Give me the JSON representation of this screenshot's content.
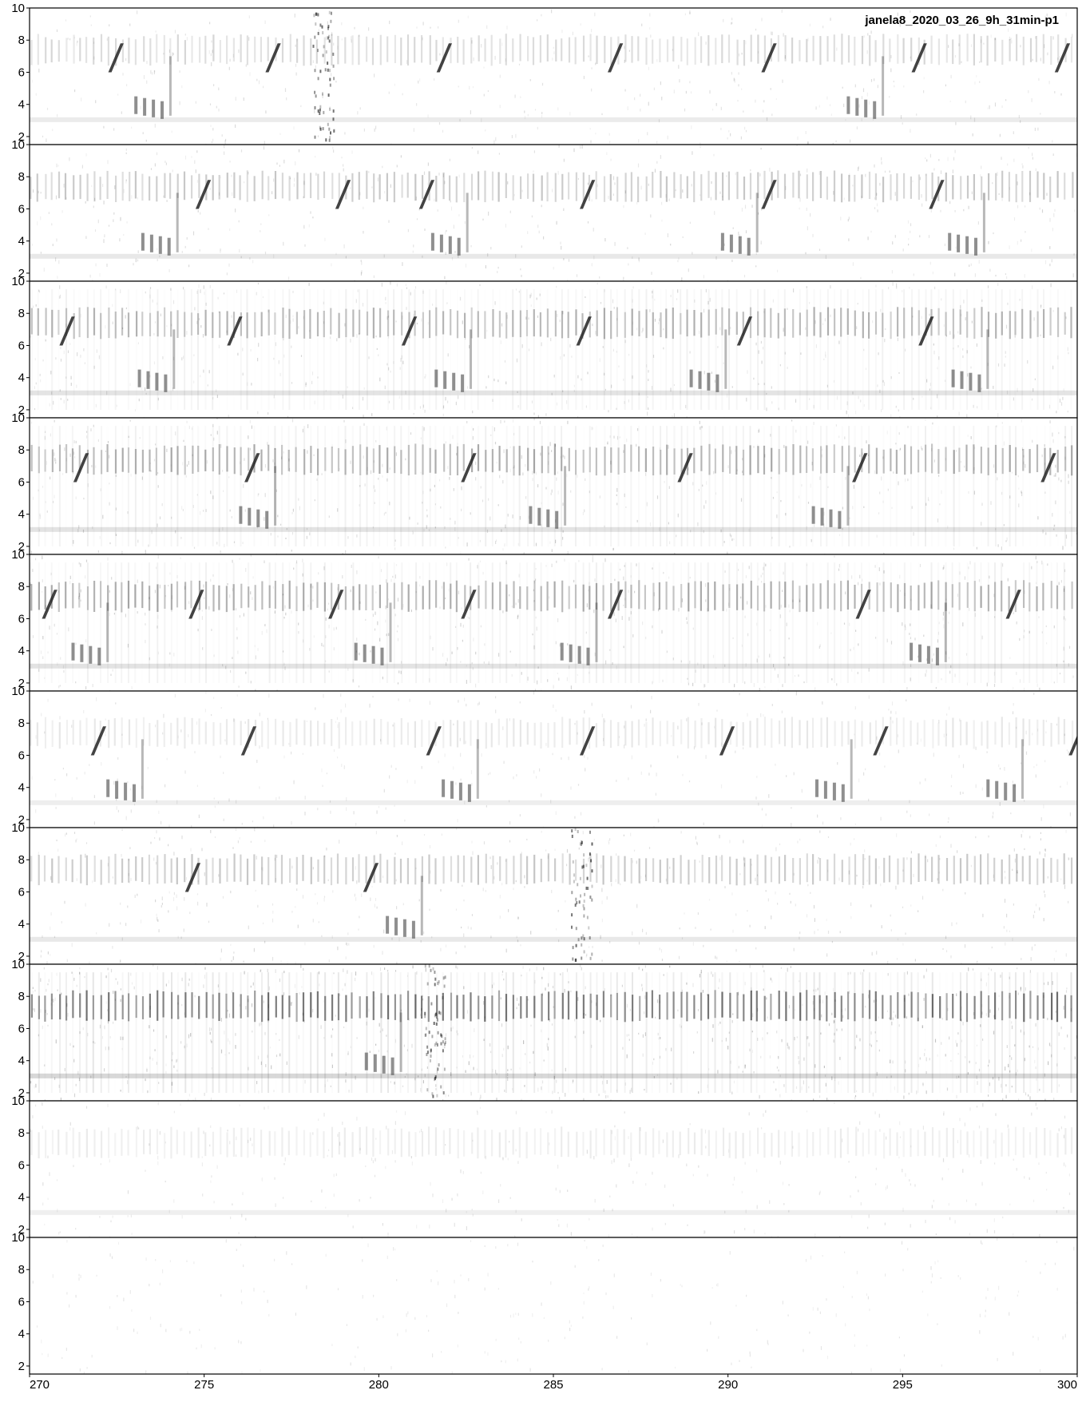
{
  "chart_data": {
    "type": "heatmap",
    "title": "janela8_2020_03_26_9h_31min-p1",
    "xlabel": "",
    "ylabel": "",
    "colormap": {
      "low": "#ffffff",
      "high": "#000000"
    },
    "panels": [
      {
        "x_range": [
          0,
          30
        ],
        "x_ticks": [
          0,
          5,
          10,
          15,
          20,
          25,
          30
        ],
        "y_range": [
          1.5,
          10
        ],
        "y_ticks": [
          2,
          4,
          6,
          8,
          10
        ],
        "tone_band_kHz": 7.3,
        "tone_intensity": 0.25,
        "calls_s": [
          2.3,
          6.8,
          11.7,
          16.6,
          21.0,
          25.3,
          29.4
        ],
        "choruses_s": [
          3.0,
          23.4
        ],
        "broadband_s": [
          8.4
        ]
      },
      {
        "x_range": [
          30,
          60
        ],
        "x_ticks": [
          30,
          35,
          40,
          45,
          50,
          55,
          60
        ],
        "y_range": [
          1.5,
          10
        ],
        "y_ticks": [
          2,
          4,
          6,
          8,
          10
        ],
        "tone_band_kHz": 7.3,
        "tone_intensity": 0.35,
        "calls_s": [
          34.8,
          38.8,
          41.2,
          45.8,
          51.0,
          55.8
        ],
        "choruses_s": [
          33.2,
          41.5,
          49.8,
          56.3
        ],
        "broadband_s": []
      },
      {
        "x_range": [
          60,
          90
        ],
        "x_ticks": [
          60,
          65,
          70,
          75,
          80,
          85,
          90
        ],
        "y_range": [
          1.5,
          10
        ],
        "y_ticks": [
          2,
          4,
          6,
          8,
          10
        ],
        "tone_band_kHz": 7.3,
        "tone_intensity": 0.45,
        "calls_s": [
          60.9,
          65.7,
          70.7,
          75.7,
          80.3,
          85.5
        ],
        "choruses_s": [
          63.1,
          71.6,
          78.9,
          86.4
        ],
        "broadband_s": []
      },
      {
        "x_range": [
          90,
          120
        ],
        "x_ticks": [
          90,
          95,
          100,
          105,
          110,
          115,
          120
        ],
        "y_range": [
          1.5,
          10
        ],
        "y_ticks": [
          2,
          4,
          6,
          8,
          10
        ],
        "tone_band_kHz": 7.3,
        "tone_intensity": 0.5,
        "calls_s": [
          91.3,
          96.2,
          102.4,
          108.6,
          113.6,
          119.0
        ],
        "choruses_s": [
          96.0,
          104.3,
          112.4
        ],
        "broadband_s": []
      },
      {
        "x_range": [
          120,
          150
        ],
        "x_ticks": [
          120,
          125,
          130,
          135,
          140,
          145,
          150
        ],
        "y_range": [
          1.5,
          10
        ],
        "y_ticks": [
          2,
          4,
          6,
          8,
          10
        ],
        "tone_band_kHz": 7.3,
        "tone_intensity": 0.5,
        "calls_s": [
          120.4,
          124.6,
          128.6,
          132.4,
          136.6,
          143.7,
          148.0
        ],
        "choruses_s": [
          121.2,
          129.3,
          135.2,
          145.2
        ],
        "broadband_s": []
      },
      {
        "x_range": [
          150,
          180
        ],
        "x_ticks": [
          150,
          155,
          160,
          165,
          170,
          175,
          180
        ],
        "y_range": [
          1.5,
          10
        ],
        "y_ticks": [
          2,
          4,
          6,
          8,
          10
        ],
        "tone_band_kHz": 7.3,
        "tone_intensity": 0.15,
        "calls_s": [
          151.8,
          156.1,
          161.4,
          165.8,
          169.8,
          174.2,
          179.8
        ],
        "choruses_s": [
          152.2,
          161.8,
          172.5,
          177.4
        ],
        "broadband_s": []
      },
      {
        "x_range": [
          180,
          210
        ],
        "x_ticks": [
          180,
          185,
          190,
          195,
          200,
          205,
          210
        ],
        "y_range": [
          1.5,
          10
        ],
        "y_ticks": [
          2,
          4,
          6,
          8,
          10
        ],
        "tone_band_kHz": 7.3,
        "tone_intensity": 0.35,
        "calls_s": [
          184.5,
          189.6
        ],
        "choruses_s": [
          190.2
        ],
        "broadband_s": [
          195.8
        ]
      },
      {
        "x_range": [
          210,
          240
        ],
        "x_ticks": [
          210,
          215,
          220,
          225,
          230,
          235,
          240
        ],
        "y_range": [
          1.5,
          10
        ],
        "y_ticks": [
          2,
          4,
          6,
          8,
          10
        ],
        "tone_band_kHz": 7.3,
        "tone_intensity": 0.85,
        "calls_s": [],
        "choruses_s": [
          219.6
        ],
        "broadband_s": [
          221.6
        ]
      },
      {
        "x_range": [
          240,
          270
        ],
        "x_ticks": [
          240,
          245,
          250,
          255,
          260,
          265,
          270
        ],
        "y_range": [
          1.5,
          10
        ],
        "y_ticks": [
          2,
          4,
          6,
          8,
          10
        ],
        "tone_band_kHz": 7.3,
        "tone_intensity": 0.12,
        "calls_s": [],
        "choruses_s": [],
        "broadband_s": []
      },
      {
        "x_range": [
          270,
          300
        ],
        "x_ticks": [
          270,
          275,
          280,
          285,
          290,
          295,
          300
        ],
        "y_range": [
          1.5,
          10
        ],
        "y_ticks": [
          2,
          4,
          6,
          8,
          10
        ],
        "tone_band_kHz": 7.3,
        "tone_intensity": 0.0,
        "calls_s": [],
        "choruses_s": [],
        "broadband_s": []
      }
    ]
  }
}
